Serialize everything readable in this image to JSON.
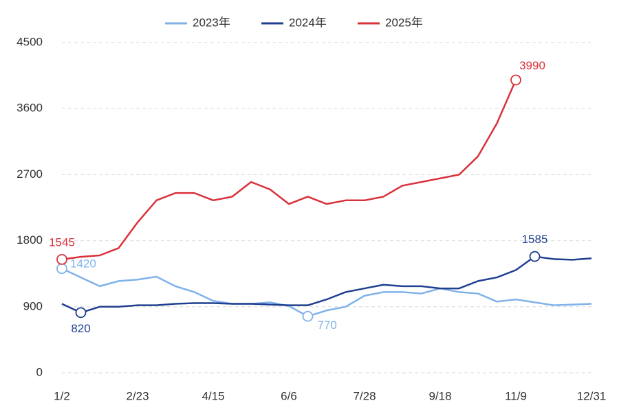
{
  "chart_data": {
    "type": "line",
    "categories": [
      "1/2",
      null,
      null,
      null,
      "2/23",
      null,
      null,
      null,
      "4/15",
      null,
      null,
      null,
      "6/6",
      null,
      null,
      null,
      "7/28",
      null,
      null,
      null,
      "9/18",
      null,
      null,
      null,
      "11/9",
      null,
      null,
      null,
      "12/31"
    ],
    "series": [
      {
        "name": "2023年",
        "color": "#7fb2ea",
        "marked": [
          0,
          13
        ],
        "values": [
          1420,
          1300,
          1180,
          1250,
          1270,
          1310,
          1180,
          1100,
          980,
          940,
          940,
          960,
          910,
          770,
          850,
          900,
          1050,
          1100,
          1100,
          1080,
          1150,
          1100,
          1080,
          970,
          1000,
          960,
          920,
          930,
          940
        ]
      },
      {
        "name": "2024年",
        "color": "#1f3f8f",
        "marked": [
          1,
          25
        ],
        "values": [
          940,
          820,
          900,
          900,
          920,
          920,
          940,
          950,
          950,
          940,
          940,
          930,
          920,
          920,
          1000,
          1100,
          1150,
          1200,
          1180,
          1180,
          1150,
          1150,
          1250,
          1300,
          1400,
          1585,
          1550,
          1540,
          1560
        ]
      },
      {
        "name": "2025年",
        "color": "#d9313a",
        "marked": [
          0,
          24
        ],
        "values": [
          1545,
          1580,
          1600,
          1700,
          2050,
          2350,
          2450,
          2450,
          2350,
          2400,
          2600,
          2500,
          2300,
          2400,
          2300,
          2350,
          2350,
          2400,
          2550,
          2600,
          2650,
          2700,
          2950,
          3400,
          3990,
          null,
          null,
          null,
          null
        ]
      }
    ],
    "ylim": [
      0,
      4500
    ],
    "yticks": [
      0,
      900,
      1800,
      2700,
      3600,
      4500
    ],
    "grid": true,
    "legend": "top"
  }
}
